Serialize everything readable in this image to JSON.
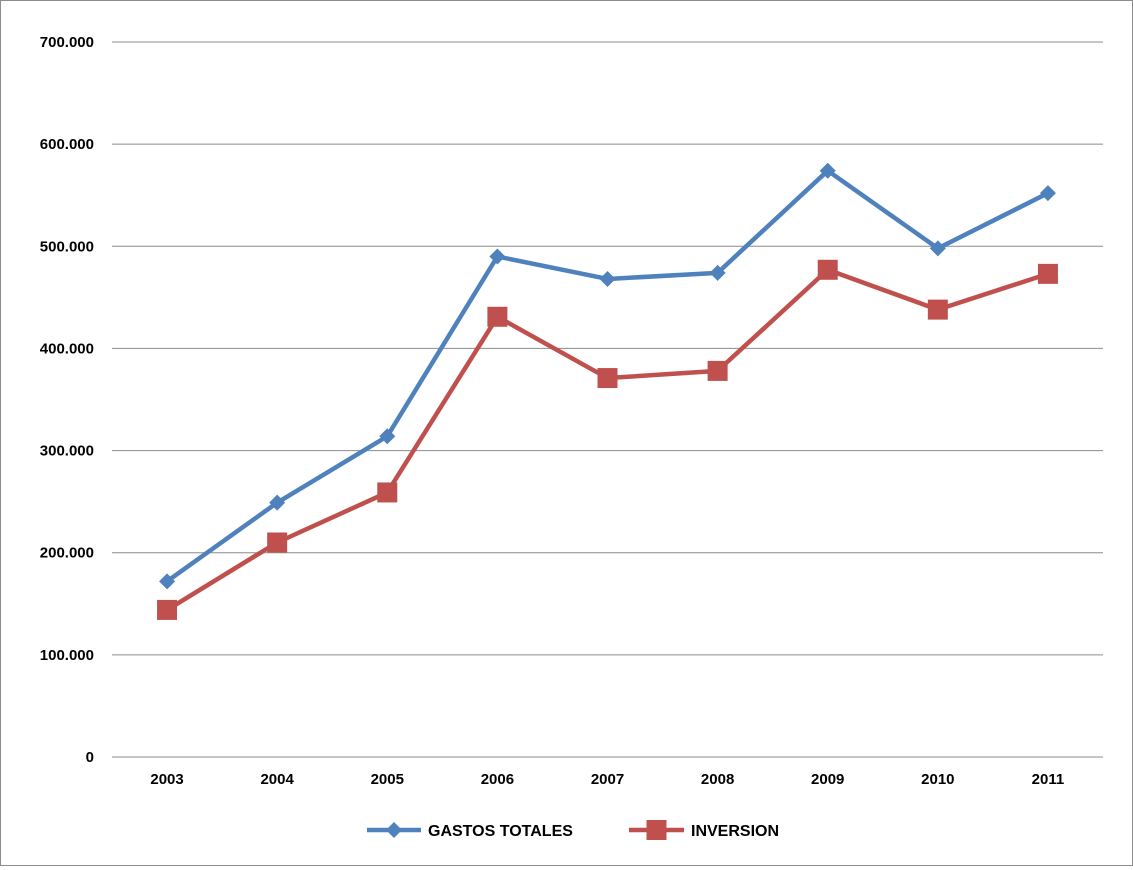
{
  "chart_data": {
    "type": "line",
    "categories": [
      "2003",
      "2004",
      "2005",
      "2006",
      "2007",
      "2008",
      "2009",
      "2010",
      "2011"
    ],
    "series": [
      {
        "name": "GASTOS TOTALES",
        "values": [
          172000,
          249000,
          314000,
          490000,
          468000,
          474000,
          574000,
          498000,
          552000
        ],
        "color": "#4f81bd",
        "marker": "diamond"
      },
      {
        "name": "INVERSION",
        "values": [
          144000,
          210000,
          259000,
          431000,
          371000,
          378000,
          477000,
          438000,
          473000
        ],
        "color": "#c0504d",
        "marker": "square"
      }
    ],
    "ylim": [
      0,
      700000
    ],
    "yticks": [
      0,
      100000,
      200000,
      300000,
      400000,
      500000,
      600000,
      700000
    ],
    "ytick_labels": [
      "0",
      "100.000",
      "200.000",
      "300.000",
      "400.000",
      "500.000",
      "600.000",
      "700.000"
    ],
    "title": "",
    "xlabel": "",
    "ylabel": "",
    "grid": true,
    "legend_position": "bottom"
  }
}
